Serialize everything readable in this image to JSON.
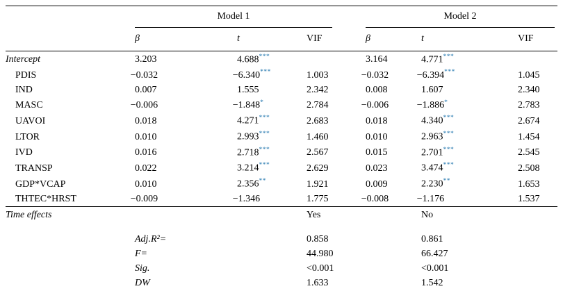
{
  "colors": {
    "significance_star": "#2176ae",
    "rule": "#000000",
    "background": "#ffffff"
  },
  "table": {
    "group_headers": {
      "model1": "Model 1",
      "model2": "Model 2"
    },
    "col_headers": [
      "β",
      "t",
      "VIF",
      "β",
      "t",
      "VIF"
    ],
    "rows": [
      {
        "label": "Intercept",
        "italic": true,
        "indent": false,
        "m1_b": "3.203",
        "m1_t": "4.688",
        "m1_t_stars": "***",
        "m1_vif": "",
        "m2_b": "3.164",
        "m2_t": "4.771",
        "m2_t_stars": "***",
        "m2_vif": ""
      },
      {
        "label": "PDIS",
        "italic": false,
        "indent": true,
        "m1_b": "−0.032",
        "m1_t": "−6.340",
        "m1_t_stars": "***",
        "m1_vif": "1.003",
        "m2_b": "−0.032",
        "m2_t": "−6.394",
        "m2_t_stars": "***",
        "m2_vif": "1.045"
      },
      {
        "label": "IND",
        "italic": false,
        "indent": true,
        "m1_b": "0.007",
        "m1_t": "1.555",
        "m1_t_stars": "",
        "m1_vif": "2.342",
        "m2_b": "0.008",
        "m2_t": "1.607",
        "m2_t_stars": "",
        "m2_vif": "2.340"
      },
      {
        "label": "MASC",
        "italic": false,
        "indent": true,
        "m1_b": "−0.006",
        "m1_t": "−1.848",
        "m1_t_stars": "*",
        "m1_vif": "2.784",
        "m2_b": "−0.006",
        "m2_t": "−1.886",
        "m2_t_stars": "*",
        "m2_vif": "2.783"
      },
      {
        "label": "UAVOI",
        "italic": false,
        "indent": true,
        "m1_b": "0.018",
        "m1_t": "4.271",
        "m1_t_stars": "***",
        "m1_vif": "2.683",
        "m2_b": "0.018",
        "m2_t": "4.340",
        "m2_t_stars": "***",
        "m2_vif": "2.674"
      },
      {
        "label": "LTOR",
        "italic": false,
        "indent": true,
        "m1_b": "0.010",
        "m1_t": "2.993",
        "m1_t_stars": "***",
        "m1_vif": "1.460",
        "m2_b": "0.010",
        "m2_t": "2.963",
        "m2_t_stars": "***",
        "m2_vif": "1.454"
      },
      {
        "label": "IVD",
        "italic": false,
        "indent": true,
        "m1_b": "0.016",
        "m1_t": "2.718",
        "m1_t_stars": "***",
        "m1_vif": "2.567",
        "m2_b": "0.015",
        "m2_t": "2.701",
        "m2_t_stars": "***",
        "m2_vif": "2.545"
      },
      {
        "label": "TRANSP",
        "italic": false,
        "indent": true,
        "m1_b": "0.022",
        "m1_t": "3.214",
        "m1_t_stars": "***",
        "m1_vif": "2.629",
        "m2_b": "0.023",
        "m2_t": "3.474",
        "m2_t_stars": "***",
        "m2_vif": "2.508"
      },
      {
        "label": "GDP*VCAP",
        "italic": false,
        "indent": true,
        "m1_b": "0.010",
        "m1_t": "2.356",
        "m1_t_stars": "**",
        "m1_vif": "1.921",
        "m2_b": "0.009",
        "m2_t": "2.230",
        "m2_t_stars": "**",
        "m2_vif": "1.653"
      },
      {
        "label": "THTEC*HRST",
        "italic": false,
        "indent": true,
        "m1_b": "−0.009",
        "m1_t": "−1.346",
        "m1_t_stars": "",
        "m1_vif": "1.775",
        "m2_b": "−0.008",
        "m2_t": "−1.176",
        "m2_t_stars": "",
        "m2_vif": "1.537"
      }
    ],
    "footer_rows": [
      {
        "label": "Time effects",
        "label_col": "main",
        "separator_above": true,
        "m1_value": "Yes",
        "m2_value": "No"
      },
      {
        "label": "Adj.R²=",
        "label_col": "b1",
        "gap_above": true,
        "m1_value": "0.858",
        "m2_value": "0.861"
      },
      {
        "label": "F=",
        "label_col": "b1",
        "m1_value": "44.980",
        "m2_value": "66.427"
      },
      {
        "label": "Sig.",
        "label_col": "b1",
        "m1_value": "<0.001",
        "m2_value": "<0.001"
      },
      {
        "label": "DW",
        "label_col": "b1",
        "m1_value": "1.633",
        "m2_value": "1.542"
      }
    ]
  }
}
